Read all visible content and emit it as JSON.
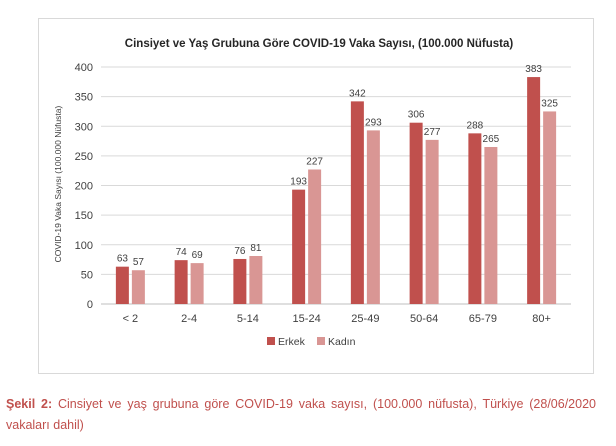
{
  "chart_data": {
    "type": "bar",
    "title": "Cinsiyet ve Yaş Grubuna Göre COVID-19 Vaka Sayısı, (100.000 Nüfusta)",
    "ylabel": "COVID-19 Vaka Sayısı (100.000 Nüfusta)",
    "xlabel": "",
    "ylim": [
      0,
      400
    ],
    "yticks": [
      0,
      50,
      100,
      150,
      200,
      250,
      300,
      350,
      400
    ],
    "grid": "horizontal",
    "legend_position": "bottom",
    "categories": [
      "< 2",
      "2-4",
      "5-14",
      "15-24",
      "25-49",
      "50-64",
      "65-79",
      "80+"
    ],
    "series": [
      {
        "name": "Erkek",
        "color": "#c0504d",
        "values": [
          63,
          74,
          76,
          193,
          342,
          306,
          288,
          383
        ]
      },
      {
        "name": "Kadın",
        "color": "#d99694",
        "values": [
          57,
          69,
          81,
          227,
          293,
          277,
          265,
          325
        ]
      }
    ]
  },
  "caption": {
    "label": "Şekil 2:",
    "text": " Cinsiyet ve yaş grubuna göre COVID-19 vaka sayısı, (100.000 nüfusta), Türkiye (28/06/2020 vakaları dahil)"
  }
}
